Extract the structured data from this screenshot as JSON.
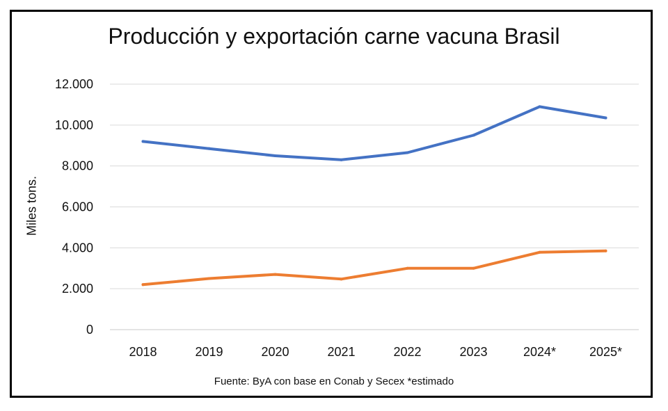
{
  "chart_data": {
    "type": "line",
    "title": "Producción y exportación carne vacuna Brasil",
    "ylabel": "Miles tons.",
    "xlabel": "",
    "source": "Fuente: ByA con base en Conab y Secex *estimado",
    "categories": [
      "2018",
      "2019",
      "2020",
      "2021",
      "2022",
      "2023",
      "2024*",
      "2025*"
    ],
    "yticks": [
      "0",
      "2.000",
      "4.000",
      "6.000",
      "8.000",
      "10.000",
      "12.000"
    ],
    "ytick_values": [
      0,
      2000,
      4000,
      6000,
      8000,
      10000,
      12000
    ],
    "ylim": [
      0,
      12000
    ],
    "grid": true,
    "series": [
      {
        "values": [
          9200,
          8850,
          8500,
          8300,
          8650,
          9500,
          10900,
          10350
        ],
        "color": "#4472C4"
      },
      {
        "values": [
          2200,
          2500,
          2700,
          2470,
          3000,
          3000,
          3780,
          3850
        ],
        "color": "#ED7D31"
      }
    ]
  }
}
